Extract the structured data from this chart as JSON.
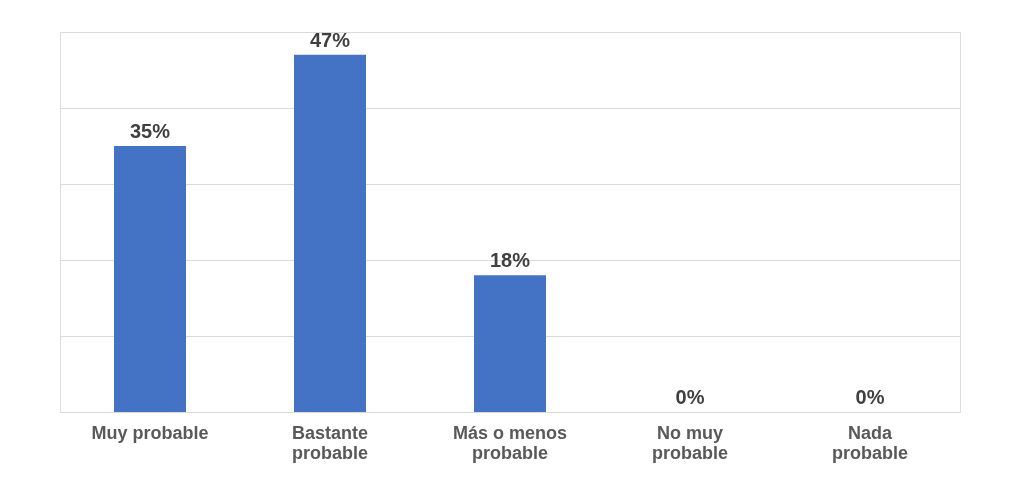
{
  "chart_data": {
    "type": "bar",
    "categories": [
      "Muy probable",
      "Bastante probable",
      "Más o menos probable",
      "No muy probable",
      "Nada probable"
    ],
    "values": [
      35,
      47,
      18,
      0,
      0
    ],
    "value_labels": [
      "35%",
      "47%",
      "18%",
      "0%",
      "0%"
    ],
    "color": "#4472c4",
    "ylim": [
      0,
      50
    ],
    "yticks": [
      {
        "value": 0,
        "label": null
      },
      {
        "value": 10,
        "label": null
      },
      {
        "value": 20,
        "label": null
      },
      {
        "value": 30,
        "label": null
      },
      {
        "value": 40,
        "label": null
      },
      {
        "value": 50,
        "label": null
      }
    ],
    "grid": "y",
    "tick_labels": "x"
  }
}
